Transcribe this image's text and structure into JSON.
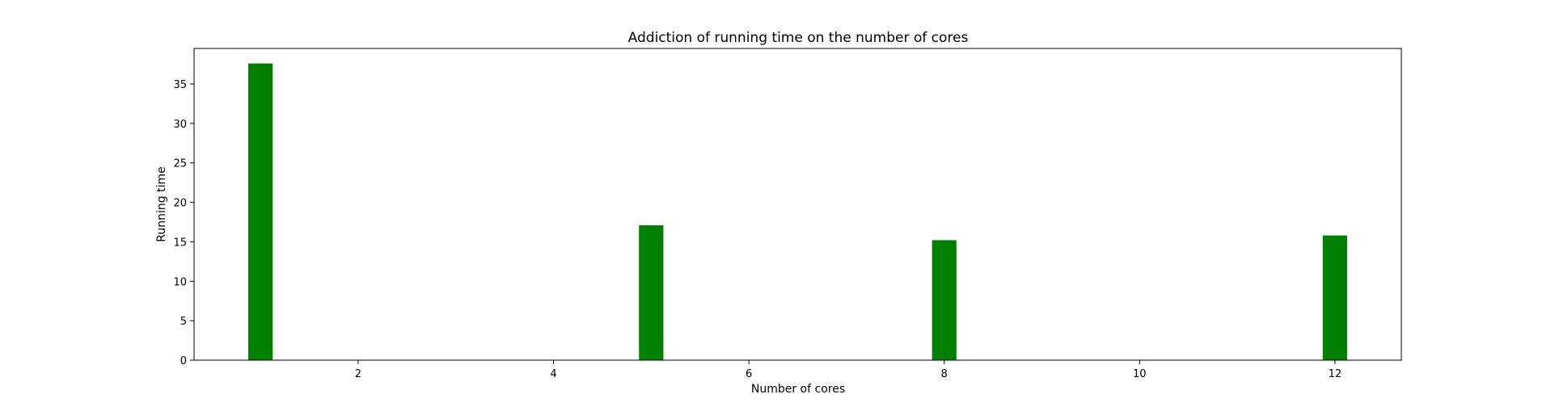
{
  "chart_data": {
    "type": "bar",
    "title": "Addiction of running time on the number of cores",
    "xlabel": "Number of cores",
    "ylabel": "Running time",
    "x": [
      1,
      5,
      8,
      12
    ],
    "values": [
      37.6,
      17.1,
      15.2,
      15.8
    ],
    "bar_width": 0.25,
    "xlim": [
      0.32,
      12.68
    ],
    "ylim": [
      0,
      39.5
    ],
    "xticks": [
      2,
      4,
      6,
      8,
      10,
      12
    ],
    "yticks": [
      0,
      5,
      10,
      15,
      20,
      25,
      30,
      35
    ],
    "bar_color": "#008000",
    "grid": false
  }
}
